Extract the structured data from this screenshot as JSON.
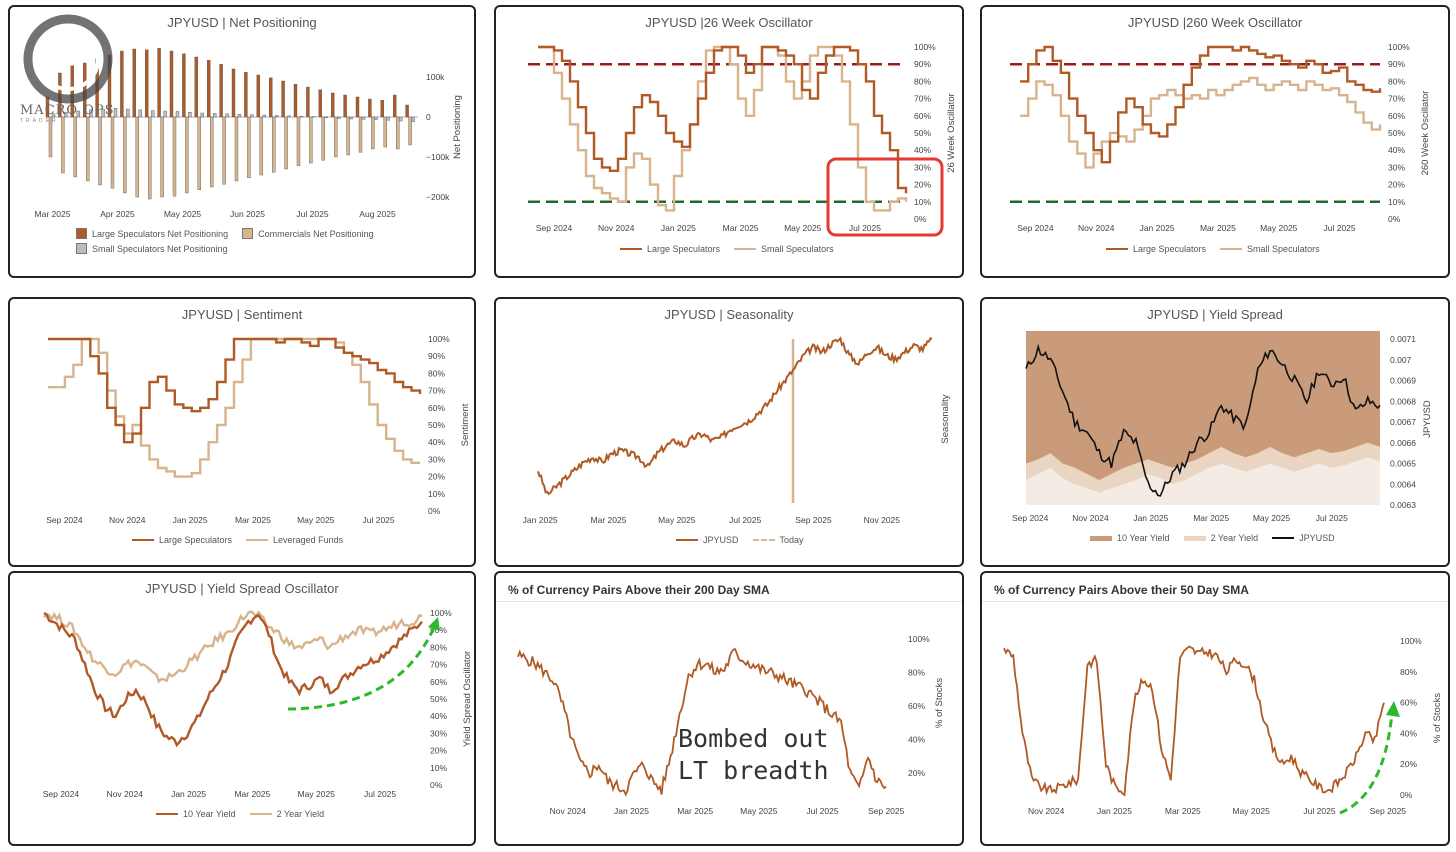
{
  "logo": {
    "text": "MACRO OPS",
    "sub": "TRADER"
  },
  "panels": {
    "p1": {
      "title": "JPYUSD | Net Positioning",
      "legend": [
        "Large Speculators Net Positioning",
        "Commercials Net Positioning",
        "Small Speculators Net Positioning"
      ]
    },
    "p2": {
      "title": "JPYUSD |26 Week Oscillator",
      "legend": [
        "Large Speculators",
        "Small Speculators"
      ]
    },
    "p3": {
      "title": "JPYUSD |260 Week Oscillator",
      "legend": [
        "Large Speculators",
        "Small Speculators"
      ]
    },
    "p4": {
      "title": "JPYUSD | Sentiment",
      "legend": [
        "Large Speculators",
        "Leveraged Funds"
      ]
    },
    "p5": {
      "title": "JPYUSD | Seasonality",
      "legend": [
        "JPYUSD",
        "Today"
      ]
    },
    "p6": {
      "title": "JPYUSD | Yield Spread",
      "legend": [
        "10 Year Yield",
        "2 Year Yield",
        "JPYUSD"
      ]
    },
    "p7": {
      "title": "JPYUSD | Yield Spread Oscillator",
      "legend": [
        "10 Year Yield",
        "2 Year Yield"
      ]
    },
    "p8": {
      "title": "% of Currency Pairs Above their 200 Day SMA",
      "annotation": [
        "Bombed out",
        "LT breadth"
      ]
    },
    "p9": {
      "title": "% of Currency Pairs Above their 50 Day SMA"
    }
  },
  "colors": {
    "rust": "#b05a25",
    "tan": "#d8b48e",
    "grey": "#bdbdbd",
    "redDash": "#9b1c1c",
    "greenDash": "#1f6b2a",
    "highlight": "#e53935",
    "arrow": "#2db92d",
    "band10": "#c99b7a",
    "band2": "#e9d5c1"
  },
  "chart_data": [
    {
      "id": "p1",
      "type": "bar",
      "title": "JPYUSD | Net Positioning",
      "ylabel": "Net Positioning",
      "ylim": [
        -220000,
        180000
      ],
      "yticks": [
        "100k",
        "0",
        "−100k",
        "−200k"
      ],
      "ytick_values": [
        100000,
        0,
        -100000,
        -200000
      ],
      "xticks": [
        "Mar 2025",
        "Apr 2025",
        "May 2025",
        "Jun 2025",
        "Jul 2025",
        "Aug 2025"
      ],
      "series": [
        {
          "name": "Large Speculators Net Positioning",
          "values": [
            50000,
            110000,
            128000,
            135000,
            145000,
            155000,
            165000,
            170000,
            168000,
            172000,
            165000,
            158000,
            150000,
            142000,
            132000,
            120000,
            112000,
            105000,
            98000,
            90000,
            82000,
            75000,
            68000,
            60000,
            55000,
            50000,
            45000,
            42000,
            55000,
            30000
          ]
        },
        {
          "name": "Commercials Net Positioning",
          "values": [
            -100000,
            -140000,
            -150000,
            -160000,
            -170000,
            -178000,
            -190000,
            -200000,
            -205000,
            -200000,
            -198000,
            -190000,
            -182000,
            -175000,
            -168000,
            -160000,
            -152000,
            -145000,
            -138000,
            -130000,
            -122000,
            -115000,
            -108000,
            -100000,
            -95000,
            -88000,
            -80000,
            -75000,
            -80000,
            -70000
          ]
        },
        {
          "name": "Small Speculators Net Positioning",
          "values": [
            8000,
            12000,
            15000,
            18000,
            20000,
            22000,
            20000,
            18000,
            16000,
            15000,
            14000,
            12000,
            10000,
            9000,
            8000,
            7000,
            6000,
            5000,
            4000,
            3000,
            2000,
            1000,
            -2000,
            -4000,
            -5000,
            -6000,
            -7000,
            -8000,
            -10000,
            -12000
          ]
        }
      ]
    },
    {
      "id": "p2",
      "type": "line",
      "title": "JPYUSD |26 Week Oscillator",
      "ylabel": "26 Week Oscillator",
      "ylim": [
        0,
        100
      ],
      "yticks": [
        "100%",
        "90%",
        "80%",
        "70%",
        "60%",
        "50%",
        "40%",
        "30%",
        "20%",
        "10%",
        "0%"
      ],
      "xticks": [
        "Sep 2024",
        "Nov 2024",
        "Jan 2025",
        "Mar 2025",
        "May 2025",
        "Jul 2025"
      ],
      "ref_lines": [
        90,
        10
      ],
      "series": [
        {
          "name": "Large Speculators",
          "values": [
            100,
            100,
            98,
            92,
            80,
            65,
            50,
            35,
            30,
            28,
            35,
            50,
            65,
            72,
            68,
            60,
            50,
            45,
            42,
            55,
            70,
            85,
            98,
            100,
            100,
            95,
            85,
            90,
            100,
            100,
            98,
            95,
            90,
            75,
            70,
            85,
            95,
            100,
            100,
            98,
            90,
            80,
            60,
            50,
            40,
            18,
            15
          ]
        },
        {
          "name": "Small Speculators",
          "values": [
            100,
            100,
            85,
            70,
            55,
            40,
            25,
            18,
            15,
            12,
            10,
            30,
            38,
            35,
            20,
            8,
            5,
            25,
            40,
            55,
            80,
            98,
            100,
            100,
            90,
            70,
            60,
            75,
            100,
            100,
            95,
            80,
            70,
            80,
            95,
            100,
            100,
            95,
            80,
            55,
            30,
            10,
            5,
            5,
            10,
            12,
            10
          ]
        }
      ]
    },
    {
      "id": "p3",
      "type": "line",
      "title": "JPYUSD |260 Week Oscillator",
      "ylabel": "260 Week Oscillator",
      "ylim": [
        0,
        100
      ],
      "yticks": [
        "100%",
        "90%",
        "80%",
        "70%",
        "60%",
        "50%",
        "40%",
        "30%",
        "20%",
        "10%",
        "0%"
      ],
      "xticks": [
        "Sep 2024",
        "Nov 2024",
        "Jan 2025",
        "Mar 2025",
        "May 2025",
        "Jul 2025"
      ],
      "ref_lines": [
        90,
        10
      ],
      "series": [
        {
          "name": "Large Speculators",
          "values": [
            80,
            90,
            98,
            100,
            92,
            85,
            70,
            60,
            50,
            40,
            33,
            45,
            62,
            70,
            65,
            55,
            50,
            48,
            55,
            65,
            78,
            88,
            95,
            100,
            100,
            100,
            98,
            100,
            98,
            96,
            94,
            95,
            92,
            90,
            88,
            92,
            90,
            85,
            86,
            88,
            80,
            78,
            75,
            74,
            76
          ]
        },
        {
          "name": "Small Speculators",
          "values": [
            60,
            70,
            80,
            78,
            72,
            60,
            45,
            38,
            30,
            38,
            45,
            50,
            48,
            45,
            52,
            60,
            70,
            72,
            75,
            72,
            70,
            72,
            70,
            75,
            72,
            75,
            78,
            80,
            82,
            78,
            75,
            78,
            80,
            78,
            75,
            80,
            78,
            75,
            76,
            72,
            68,
            62,
            56,
            52,
            55
          ]
        }
      ]
    },
    {
      "id": "p4",
      "type": "line",
      "title": "JPYUSD | Sentiment",
      "ylabel": "Sentiment",
      "ylim": [
        0,
        100
      ],
      "yticks": [
        "100%",
        "90%",
        "80%",
        "70%",
        "60%",
        "50%",
        "40%",
        "30%",
        "20%",
        "10%",
        "0%"
      ],
      "xticks": [
        "Sep 2024",
        "Nov 2024",
        "Jan 2025",
        "Mar 2025",
        "May 2025",
        "Jul 2025"
      ],
      "series": [
        {
          "name": "Large Speculators",
          "values": [
            100,
            100,
            100,
            100,
            100,
            90,
            80,
            60,
            50,
            40,
            45,
            60,
            75,
            78,
            70,
            62,
            60,
            58,
            60,
            65,
            75,
            88,
            100,
            100,
            100,
            100,
            100,
            98,
            100,
            100,
            98,
            96,
            100,
            100,
            95,
            92,
            90,
            88,
            86,
            82,
            80,
            75,
            72,
            70,
            68
          ]
        },
        {
          "name": "Leveraged Funds",
          "values": [
            72,
            72,
            78,
            85,
            100,
            100,
            92,
            70,
            55,
            45,
            50,
            38,
            30,
            25,
            23,
            20,
            20,
            22,
            30,
            40,
            50,
            60,
            75,
            88,
            100,
            100,
            100,
            100,
            100,
            100,
            100,
            100,
            100,
            100,
            98,
            92,
            85,
            75,
            62,
            50,
            42,
            35,
            30,
            28,
            28
          ]
        }
      ]
    },
    {
      "id": "p5",
      "type": "line",
      "title": "JPYUSD | Seasonality",
      "ylabel": "Seasonality",
      "xticks": [
        "Jan 2025",
        "Mar 2025",
        "May 2025",
        "Jul 2025",
        "Sep 2025",
        "Nov 2025"
      ],
      "today": "Sep 2025",
      "series": [
        {
          "name": "JPYUSD",
          "values": [
            0.2,
            0.05,
            0.1,
            0.15,
            0.2,
            0.25,
            0.28,
            0.25,
            0.3,
            0.32,
            0.3,
            0.28,
            0.22,
            0.3,
            0.35,
            0.38,
            0.35,
            0.4,
            0.42,
            0.38,
            0.4,
            0.45,
            0.48,
            0.5,
            0.55,
            0.6,
            0.68,
            0.75,
            0.82,
            0.9,
            0.95,
            0.92,
            0.97,
            1.0,
            0.9,
            0.85,
            0.92,
            0.95,
            0.9,
            0.88,
            0.92,
            0.96,
            0.94,
            1.0
          ]
        }
      ]
    },
    {
      "id": "p6",
      "type": "area",
      "title": "JPYUSD | Yield Spread",
      "ylabel": "JPYUSD",
      "ylim": [
        0.0063,
        0.0071
      ],
      "yticks": [
        "0.0071",
        "0.007",
        "0.0069",
        "0.0068",
        "0.0067",
        "0.0066",
        "0.0065",
        "0.0064",
        "0.0063"
      ],
      "xticks": [
        "Sep 2024",
        "Nov 2024",
        "Jan 2025",
        "Mar 2025",
        "May 2025",
        "Jul 2025"
      ],
      "series": [
        {
          "name": "10 Year Yield",
          "values": [
            0.0065,
            0.00652,
            0.00655,
            0.0065,
            0.00648,
            0.00645,
            0.00642,
            0.00645,
            0.00648,
            0.0065,
            0.00652,
            0.0065,
            0.00648,
            0.0065,
            0.00652,
            0.00655,
            0.00658,
            0.00655,
            0.00653,
            0.00655,
            0.00658,
            0.00655,
            0.00653,
            0.00655,
            0.00657,
            0.00655,
            0.00656,
            0.00658,
            0.0066,
            0.00658
          ]
        },
        {
          "name": "2 Year Yield",
          "values": [
            0.00642,
            0.00645,
            0.00648,
            0.00643,
            0.0064,
            0.00638,
            0.00636,
            0.00638,
            0.0064,
            0.00642,
            0.00645,
            0.00643,
            0.0064,
            0.00642,
            0.00645,
            0.00648,
            0.0065,
            0.00648,
            0.00646,
            0.00648,
            0.0065,
            0.00648,
            0.00646,
            0.00648,
            0.0065,
            0.00648,
            0.00649,
            0.00651,
            0.00653,
            0.00651
          ]
        },
        {
          "name": "JPYUSD",
          "values": [
            0.00695,
            0.00705,
            0.007,
            0.00685,
            0.0067,
            0.00665,
            0.00655,
            0.0065,
            0.00665,
            0.0066,
            0.0064,
            0.00635,
            0.00645,
            0.0065,
            0.0066,
            0.00665,
            0.00678,
            0.00672,
            0.00668,
            0.00695,
            0.00705,
            0.00698,
            0.0069,
            0.0068,
            0.00695,
            0.00688,
            0.00692,
            0.00675,
            0.0068,
            0.00678
          ]
        }
      ]
    },
    {
      "id": "p7",
      "type": "line",
      "title": "JPYUSD | Yield Spread Oscillator",
      "ylabel": "Yield Spread Oscillator",
      "ylim": [
        0,
        100
      ],
      "yticks": [
        "100%",
        "90%",
        "80%",
        "70%",
        "60%",
        "50%",
        "40%",
        "30%",
        "20%",
        "10%",
        "0%"
      ],
      "xticks": [
        "Sep 2024",
        "Nov 2024",
        "Jan 2025",
        "Mar 2025",
        "May 2025",
        "Jul 2025"
      ],
      "series": [
        {
          "name": "10 Year Yield",
          "values": [
            100,
            95,
            90,
            85,
            70,
            55,
            45,
            40,
            50,
            55,
            48,
            35,
            28,
            25,
            30,
            38,
            50,
            60,
            70,
            85,
            95,
            100,
            88,
            70,
            60,
            55,
            58,
            62,
            55,
            60,
            65,
            70,
            72,
            75,
            80,
            85,
            90,
            95
          ]
        },
        {
          "name": "2 Year Yield",
          "values": [
            100,
            98,
            95,
            90,
            80,
            72,
            68,
            65,
            70,
            72,
            68,
            62,
            62,
            65,
            70,
            75,
            80,
            85,
            88,
            95,
            100,
            98,
            92,
            88,
            82,
            80,
            82,
            85,
            80,
            85,
            88,
            90,
            88,
            90,
            92,
            95,
            95,
            98
          ]
        }
      ]
    },
    {
      "id": "p8",
      "type": "line",
      "title": "% of Currency Pairs Above their 200 Day SMA",
      "ylabel": "% of Stocks",
      "yticks": [
        "100%",
        "80%",
        "60%",
        "40%",
        "20%"
      ],
      "xticks": [
        "Nov 2024",
        "Jan 2025",
        "Mar 2025",
        "May 2025",
        "Jul 2025",
        "Sep 2025"
      ],
      "series": [
        {
          "values": [
            90,
            88,
            85,
            80,
            75,
            60,
            40,
            25,
            20,
            25,
            15,
            12,
            10,
            20,
            25,
            15,
            10,
            30,
            55,
            78,
            85,
            85,
            80,
            82,
            92,
            88,
            85,
            82,
            80,
            78,
            75,
            72,
            70,
            65,
            60,
            55,
            50,
            20,
            10,
            30,
            15,
            12
          ]
        }
      ]
    },
    {
      "id": "p9",
      "type": "line",
      "title": "% of Currency Pairs Above their 50 Day SMA",
      "ylabel": "% of Stocks",
      "yticks": [
        "100%",
        "80%",
        "60%",
        "40%",
        "20%",
        "0%"
      ],
      "xticks": [
        "Nov 2024",
        "Jan 2025",
        "Mar 2025",
        "May 2025",
        "Jul 2025",
        "Sep 2025"
      ],
      "series": [
        {
          "values": [
            95,
            90,
            40,
            10,
            5,
            3,
            5,
            8,
            10,
            85,
            88,
            20,
            5,
            3,
            60,
            75,
            70,
            30,
            10,
            90,
            95,
            92,
            93,
            90,
            80,
            88,
            85,
            75,
            50,
            30,
            20,
            25,
            15,
            10,
            5,
            3,
            8,
            15,
            25,
            40,
            35,
            60
          ]
        }
      ]
    }
  ]
}
